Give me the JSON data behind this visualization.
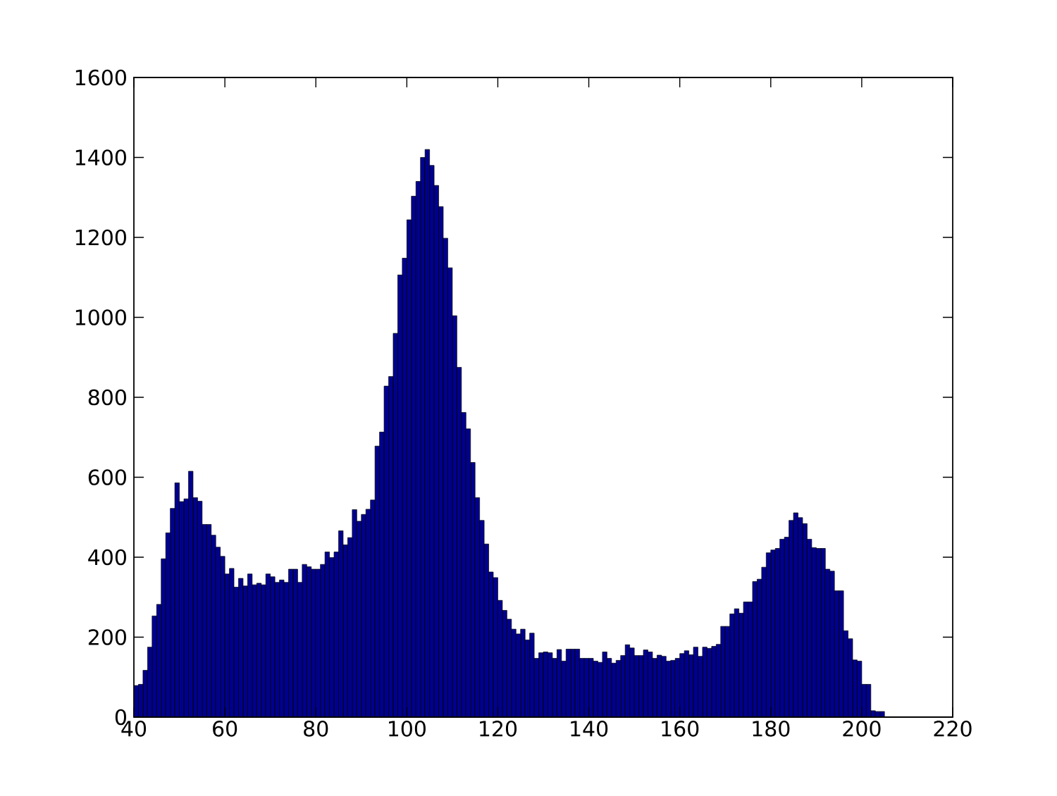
{
  "chart_data": {
    "type": "histogram",
    "bins": [
      40,
      41,
      42,
      43,
      44,
      45,
      46,
      47,
      48,
      49,
      50,
      51,
      52,
      53,
      54,
      55,
      56,
      57,
      58,
      59,
      60,
      61,
      62,
      63,
      64,
      65,
      66,
      67,
      68,
      69,
      70,
      71,
      72,
      73,
      74,
      75,
      76,
      77,
      78,
      79,
      80,
      81,
      82,
      83,
      84,
      85,
      86,
      87,
      88,
      89,
      90,
      91,
      92,
      93,
      94,
      95,
      96,
      97,
      98,
      99,
      100,
      101,
      102,
      103,
      104,
      105,
      106,
      107,
      108,
      109,
      110,
      111,
      112,
      113,
      114,
      115,
      116,
      117,
      118,
      119,
      120,
      121,
      122,
      123,
      124,
      125,
      126,
      127,
      128,
      129,
      130,
      131,
      132,
      133,
      134,
      135,
      136,
      137,
      138,
      139,
      140,
      141,
      142,
      143,
      144,
      145,
      146,
      147,
      148,
      149,
      150,
      151,
      152,
      153,
      154,
      155,
      156,
      157,
      158,
      159,
      160,
      161,
      162,
      163,
      164,
      165,
      166,
      167,
      168,
      169,
      170,
      171,
      172,
      173,
      174,
      175,
      176,
      177,
      178,
      179,
      180,
      181,
      182,
      183,
      184,
      185,
      186,
      187,
      188,
      189,
      190,
      191,
      192,
      193,
      194,
      195,
      196,
      197,
      198,
      199,
      200,
      201,
      202,
      203,
      204,
      205
    ],
    "values": [
      79,
      82,
      117,
      175,
      253,
      282,
      396,
      461,
      522,
      586,
      539,
      546,
      615,
      549,
      540,
      482,
      482,
      455,
      425,
      402,
      358,
      372,
      325,
      347,
      328,
      358,
      331,
      335,
      331,
      358,
      351,
      337,
      343,
      337,
      370,
      370,
      337,
      382,
      376,
      370,
      370,
      382,
      413,
      399,
      413,
      466,
      431,
      449,
      519,
      490,
      507,
      520,
      543,
      678,
      713,
      828,
      852,
      960,
      1106,
      1148,
      1244,
      1303,
      1340,
      1400,
      1420,
      1380,
      1330,
      1277,
      1198,
      1124,
      1004,
      875,
      762,
      721,
      637,
      549,
      492,
      433,
      363,
      349,
      292,
      267,
      245,
      220,
      208,
      220,
      193,
      210,
      147,
      161,
      163,
      161,
      147,
      169,
      140,
      170,
      170,
      170,
      147,
      147,
      147,
      140,
      137,
      163,
      147,
      135,
      142,
      154,
      181,
      173,
      154,
      154,
      168,
      163,
      147,
      155,
      152,
      140,
      142,
      147,
      159,
      166,
      156,
      175,
      152,
      175,
      172,
      177,
      182,
      227,
      227,
      258,
      271,
      260,
      288,
      288,
      339,
      345,
      375,
      411,
      418,
      422,
      445,
      450,
      492,
      511,
      499,
      484,
      445,
      424,
      422,
      422,
      370,
      365,
      316,
      316,
      216,
      196,
      143,
      140,
      82,
      82,
      16,
      14,
      14
    ],
    "color": "#000090",
    "xlim": [
      40,
      220
    ],
    "ylim": [
      0,
      1600
    ],
    "xticks": [
      40,
      60,
      80,
      100,
      120,
      140,
      160,
      180,
      200,
      220
    ],
    "yticks": [
      0,
      200,
      400,
      600,
      800,
      1000,
      1200,
      1400,
      1600
    ]
  }
}
